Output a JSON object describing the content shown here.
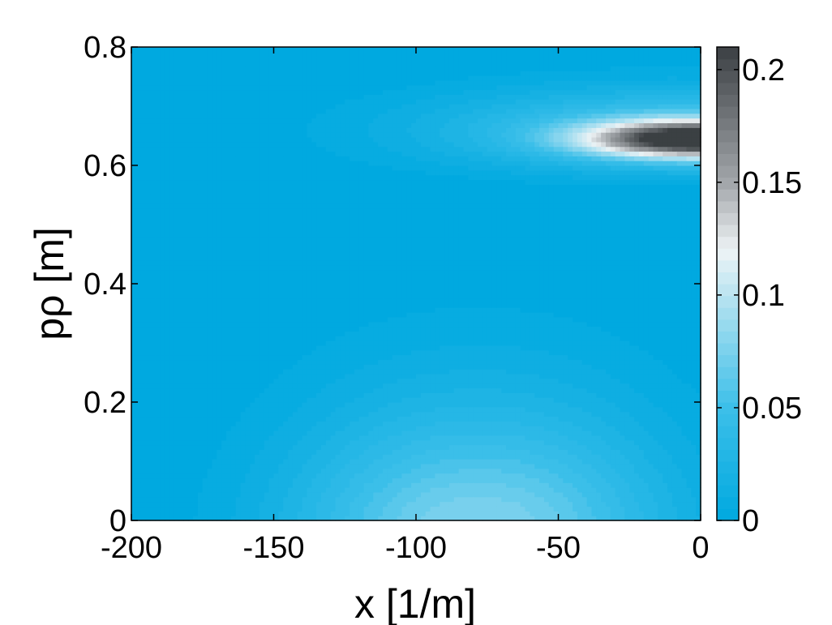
{
  "chart_data": {
    "type": "heatmap",
    "title": "",
    "xlabel": "x [1/m]",
    "ylabel": "pρ [m]",
    "xlim": [
      -200,
      0
    ],
    "ylim": [
      0,
      0.8
    ],
    "x_ticks": [
      "-200",
      "-150",
      "-100",
      "-50",
      "0"
    ],
    "x_tick_values": [
      -200,
      -150,
      -100,
      -50,
      0
    ],
    "y_ticks": [
      "0",
      "0.2",
      "0.4",
      "0.6",
      "0.8"
    ],
    "y_tick_values": [
      0,
      0.2,
      0.4,
      0.6,
      0.8
    ],
    "colorbar": {
      "range": [
        0,
        0.21
      ],
      "ticks": [
        "0",
        "0.05",
        "0.1",
        "0.15",
        "0.2"
      ],
      "tick_values": [
        0,
        0.05,
        0.1,
        0.15,
        0.2
      ],
      "colormap_stops": [
        {
          "value": 0.0,
          "color": "#00a9e0"
        },
        {
          "value": 0.05,
          "color": "#3cbfe9"
        },
        {
          "value": 0.09,
          "color": "#9fdcef"
        },
        {
          "value": 0.12,
          "color": "#eef3f5"
        },
        {
          "value": 0.15,
          "color": "#a2a6aa"
        },
        {
          "value": 0.21,
          "color": "#3b4043"
        }
      ]
    },
    "features": [
      {
        "kind": "peak",
        "x": -78,
        "y": 0.0,
        "value": 0.08,
        "sx": 65,
        "sy": 0.2
      },
      {
        "kind": "peak",
        "x": 0,
        "y": 0.645,
        "value": 0.21,
        "sx": 38,
        "sy": 0.03
      },
      {
        "kind": "halo",
        "x": -10,
        "y": 0.66,
        "value": 0.06,
        "sx": 85,
        "sy": 0.07
      }
    ],
    "grid": false,
    "legend": "none",
    "colorbar_position": "right"
  }
}
